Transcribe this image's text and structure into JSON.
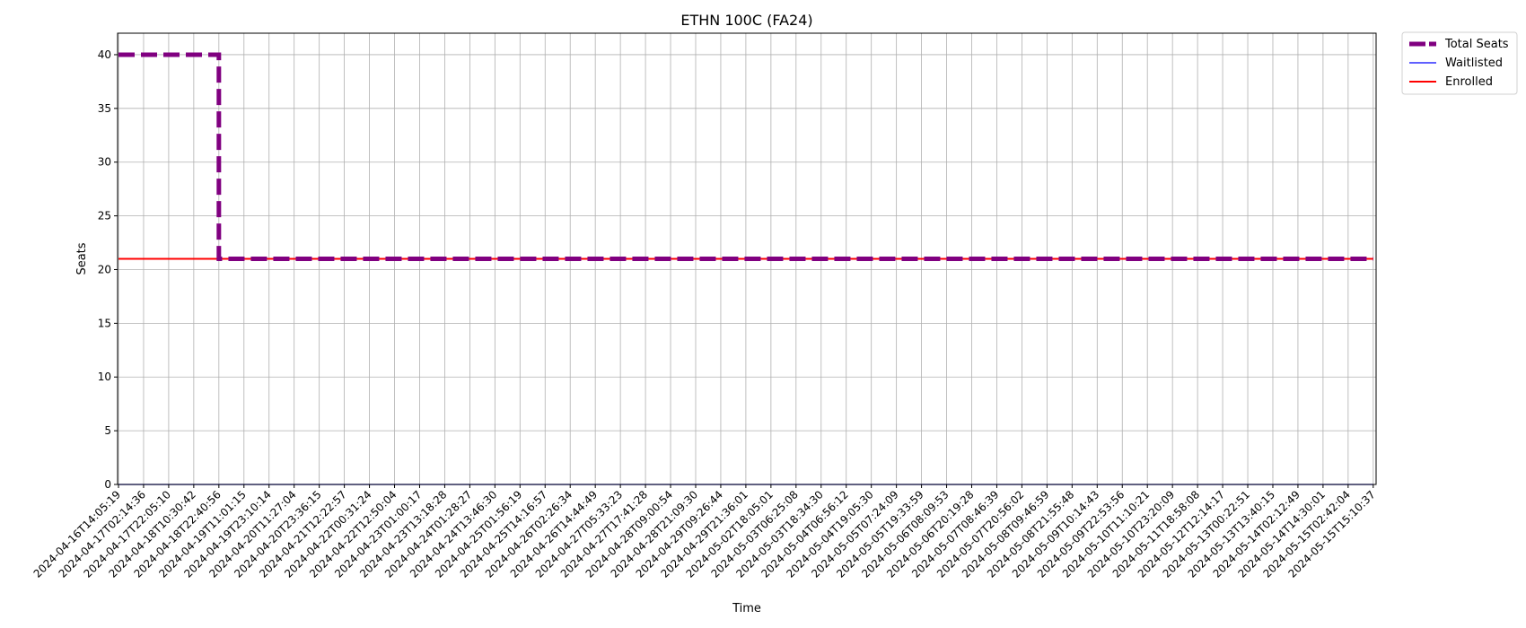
{
  "chart_data": {
    "type": "line",
    "title": "ETHN 100C (FA24)",
    "xlabel": "Time",
    "ylabel": "Seats",
    "ylim": [
      0,
      42
    ],
    "yticks": [
      0,
      5,
      10,
      15,
      20,
      25,
      30,
      35,
      40
    ],
    "grid": true,
    "legend_position": "outside-top-right",
    "x": [
      "2024-04-16T14:05:19",
      "2024-04-17T02:14:36",
      "2024-04-17T22:05:10",
      "2024-04-18T10:30:42",
      "2024-04-18T22:40:56",
      "2024-04-19T11:01:15",
      "2024-04-19T23:10:14",
      "2024-04-20T11:27:04",
      "2024-04-20T23:36:15",
      "2024-04-21T12:22:57",
      "2024-04-22T00:31:24",
      "2024-04-22T12:50:04",
      "2024-04-23T01:00:17",
      "2024-04-23T13:18:28",
      "2024-04-24T01:28:27",
      "2024-04-24T13:46:30",
      "2024-04-25T01:56:19",
      "2024-04-25T14:16:57",
      "2024-04-26T02:26:34",
      "2024-04-26T14:44:49",
      "2024-04-27T05:33:23",
      "2024-04-27T17:41:28",
      "2024-04-28T09:00:54",
      "2024-04-28T21:09:30",
      "2024-04-29T09:26:44",
      "2024-04-29T21:36:01",
      "2024-05-02T18:05:01",
      "2024-05-03T06:25:08",
      "2024-05-03T18:34:30",
      "2024-05-04T06:56:12",
      "2024-05-04T19:05:30",
      "2024-05-05T07:24:09",
      "2024-05-05T19:33:59",
      "2024-05-06T08:09:53",
      "2024-05-06T20:19:28",
      "2024-05-07T08:46:39",
      "2024-05-07T20:56:02",
      "2024-05-08T09:46:59",
      "2024-05-08T21:55:48",
      "2024-05-09T10:14:43",
      "2024-05-09T22:53:56",
      "2024-05-10T11:10:21",
      "2024-05-10T23:20:09",
      "2024-05-11T18:58:08",
      "2024-05-12T12:14:17",
      "2024-05-13T00:22:51",
      "2024-05-13T13:40:15",
      "2024-05-14T02:12:49",
      "2024-05-14T14:30:01",
      "2024-05-15T02:42:04",
      "2024-05-15T15:10:37"
    ],
    "series": [
      {
        "name": "Total Seats",
        "color": "#800080",
        "style": "dashed",
        "values": [
          40,
          40,
          40,
          40,
          21,
          21,
          21,
          21,
          21,
          21,
          21,
          21,
          21,
          21,
          21,
          21,
          21,
          21,
          21,
          21,
          21,
          21,
          21,
          21,
          21,
          21,
          21,
          21,
          21,
          21,
          21,
          21,
          21,
          21,
          21,
          21,
          21,
          21,
          21,
          21,
          21,
          21,
          21,
          21,
          21,
          21,
          21,
          21,
          21,
          21,
          21
        ]
      },
      {
        "name": "Waitlisted",
        "color": "#0000ff",
        "style": "solid-thin",
        "values": [
          0,
          0,
          0,
          0,
          0,
          0,
          0,
          0,
          0,
          0,
          0,
          0,
          0,
          0,
          0,
          0,
          0,
          0,
          0,
          0,
          0,
          0,
          0,
          0,
          0,
          0,
          0,
          0,
          0,
          0,
          0,
          0,
          0,
          0,
          0,
          0,
          0,
          0,
          0,
          0,
          0,
          0,
          0,
          0,
          0,
          0,
          0,
          0,
          0,
          0,
          0
        ]
      },
      {
        "name": "Enrolled",
        "color": "#ff0000",
        "style": "solid",
        "values": [
          21,
          21,
          21,
          21,
          21,
          21,
          21,
          21,
          21,
          21,
          21,
          21,
          21,
          21,
          21,
          21,
          21,
          21,
          21,
          21,
          21,
          21,
          21,
          21,
          21,
          21,
          21,
          21,
          21,
          21,
          21,
          21,
          21,
          21,
          21,
          21,
          21,
          21,
          21,
          21,
          21,
          21,
          21,
          21,
          21,
          21,
          21,
          21,
          21,
          21,
          21
        ]
      }
    ]
  }
}
